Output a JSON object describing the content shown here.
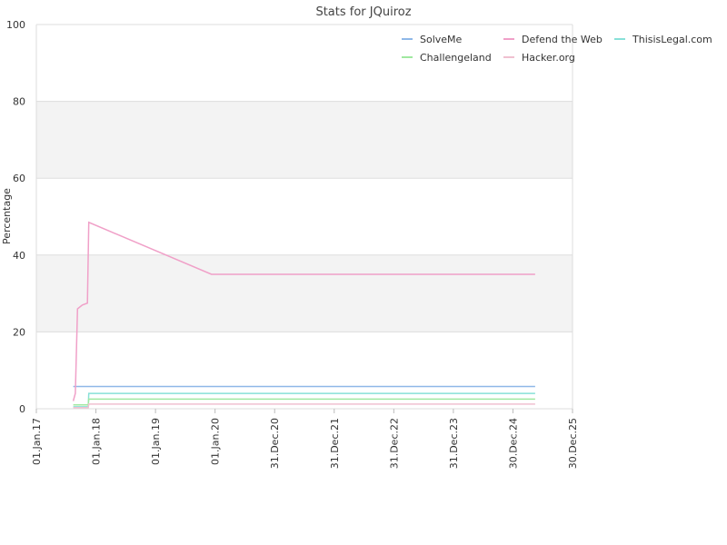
{
  "chart_data": {
    "type": "line",
    "title": "Stats for JQuiroz",
    "xlabel": "",
    "ylabel": "Percentage",
    "ylim": [
      0,
      100
    ],
    "y_ticks": [
      0,
      20,
      40,
      60,
      80,
      100
    ],
    "x_range": [
      "2017-01-01",
      "2025-12-30"
    ],
    "x_ticks": [
      {
        "date": "2017-01-01",
        "label": "01.Jan.17"
      },
      {
        "date": "2018-01-01",
        "label": "01.Jan.18"
      },
      {
        "date": "2019-01-01",
        "label": "01.Jan.19"
      },
      {
        "date": "2020-01-01",
        "label": "01.Jan.20"
      },
      {
        "date": "2020-12-31",
        "label": "31.Dec.20"
      },
      {
        "date": "2021-12-31",
        "label": "31.Dec.21"
      },
      {
        "date": "2022-12-31",
        "label": "31.Dec.22"
      },
      {
        "date": "2023-12-31",
        "label": "31.Dec.23"
      },
      {
        "date": "2024-12-30",
        "label": "30.Dec.24"
      },
      {
        "date": "2025-12-30",
        "label": "30.Dec.25"
      }
    ],
    "grid": true,
    "banded_background": true,
    "legend_position": "top-right",
    "series": [
      {
        "name": "SolveMe",
        "color": "#8fb8e8",
        "points": [
          [
            "2017-08-15",
            5.8
          ],
          [
            "2025-05-15",
            5.8
          ]
        ]
      },
      {
        "name": "Defend the Web",
        "color": "#f0a0c8",
        "points": [
          [
            "2017-08-15",
            2
          ],
          [
            "2017-08-28",
            4
          ],
          [
            "2017-09-10",
            26
          ],
          [
            "2017-10-10",
            27
          ],
          [
            "2017-11-10",
            27.5
          ],
          [
            "2017-11-18",
            48.5
          ],
          [
            "2019-12-10",
            35
          ],
          [
            "2025-05-15",
            35
          ]
        ]
      },
      {
        "name": "ThisisLegal.com",
        "color": "#88e0d8",
        "points": [
          [
            "2017-08-15",
            0.5
          ],
          [
            "2017-11-15",
            0.5
          ],
          [
            "2017-11-18",
            4
          ],
          [
            "2025-05-15",
            4
          ]
        ]
      },
      {
        "name": "Challengeland",
        "color": "#a0e8a0",
        "points": [
          [
            "2017-08-15",
            1
          ],
          [
            "2017-11-15",
            1
          ],
          [
            "2017-11-18",
            2.5
          ],
          [
            "2025-05-15",
            2.5
          ]
        ]
      },
      {
        "name": "Hacker.org",
        "color": "#f0c0d0",
        "points": [
          [
            "2017-08-15",
            0.3
          ],
          [
            "2017-11-15",
            0.3
          ],
          [
            "2017-11-18",
            1.2
          ],
          [
            "2025-05-15",
            1.2
          ]
        ]
      }
    ]
  }
}
